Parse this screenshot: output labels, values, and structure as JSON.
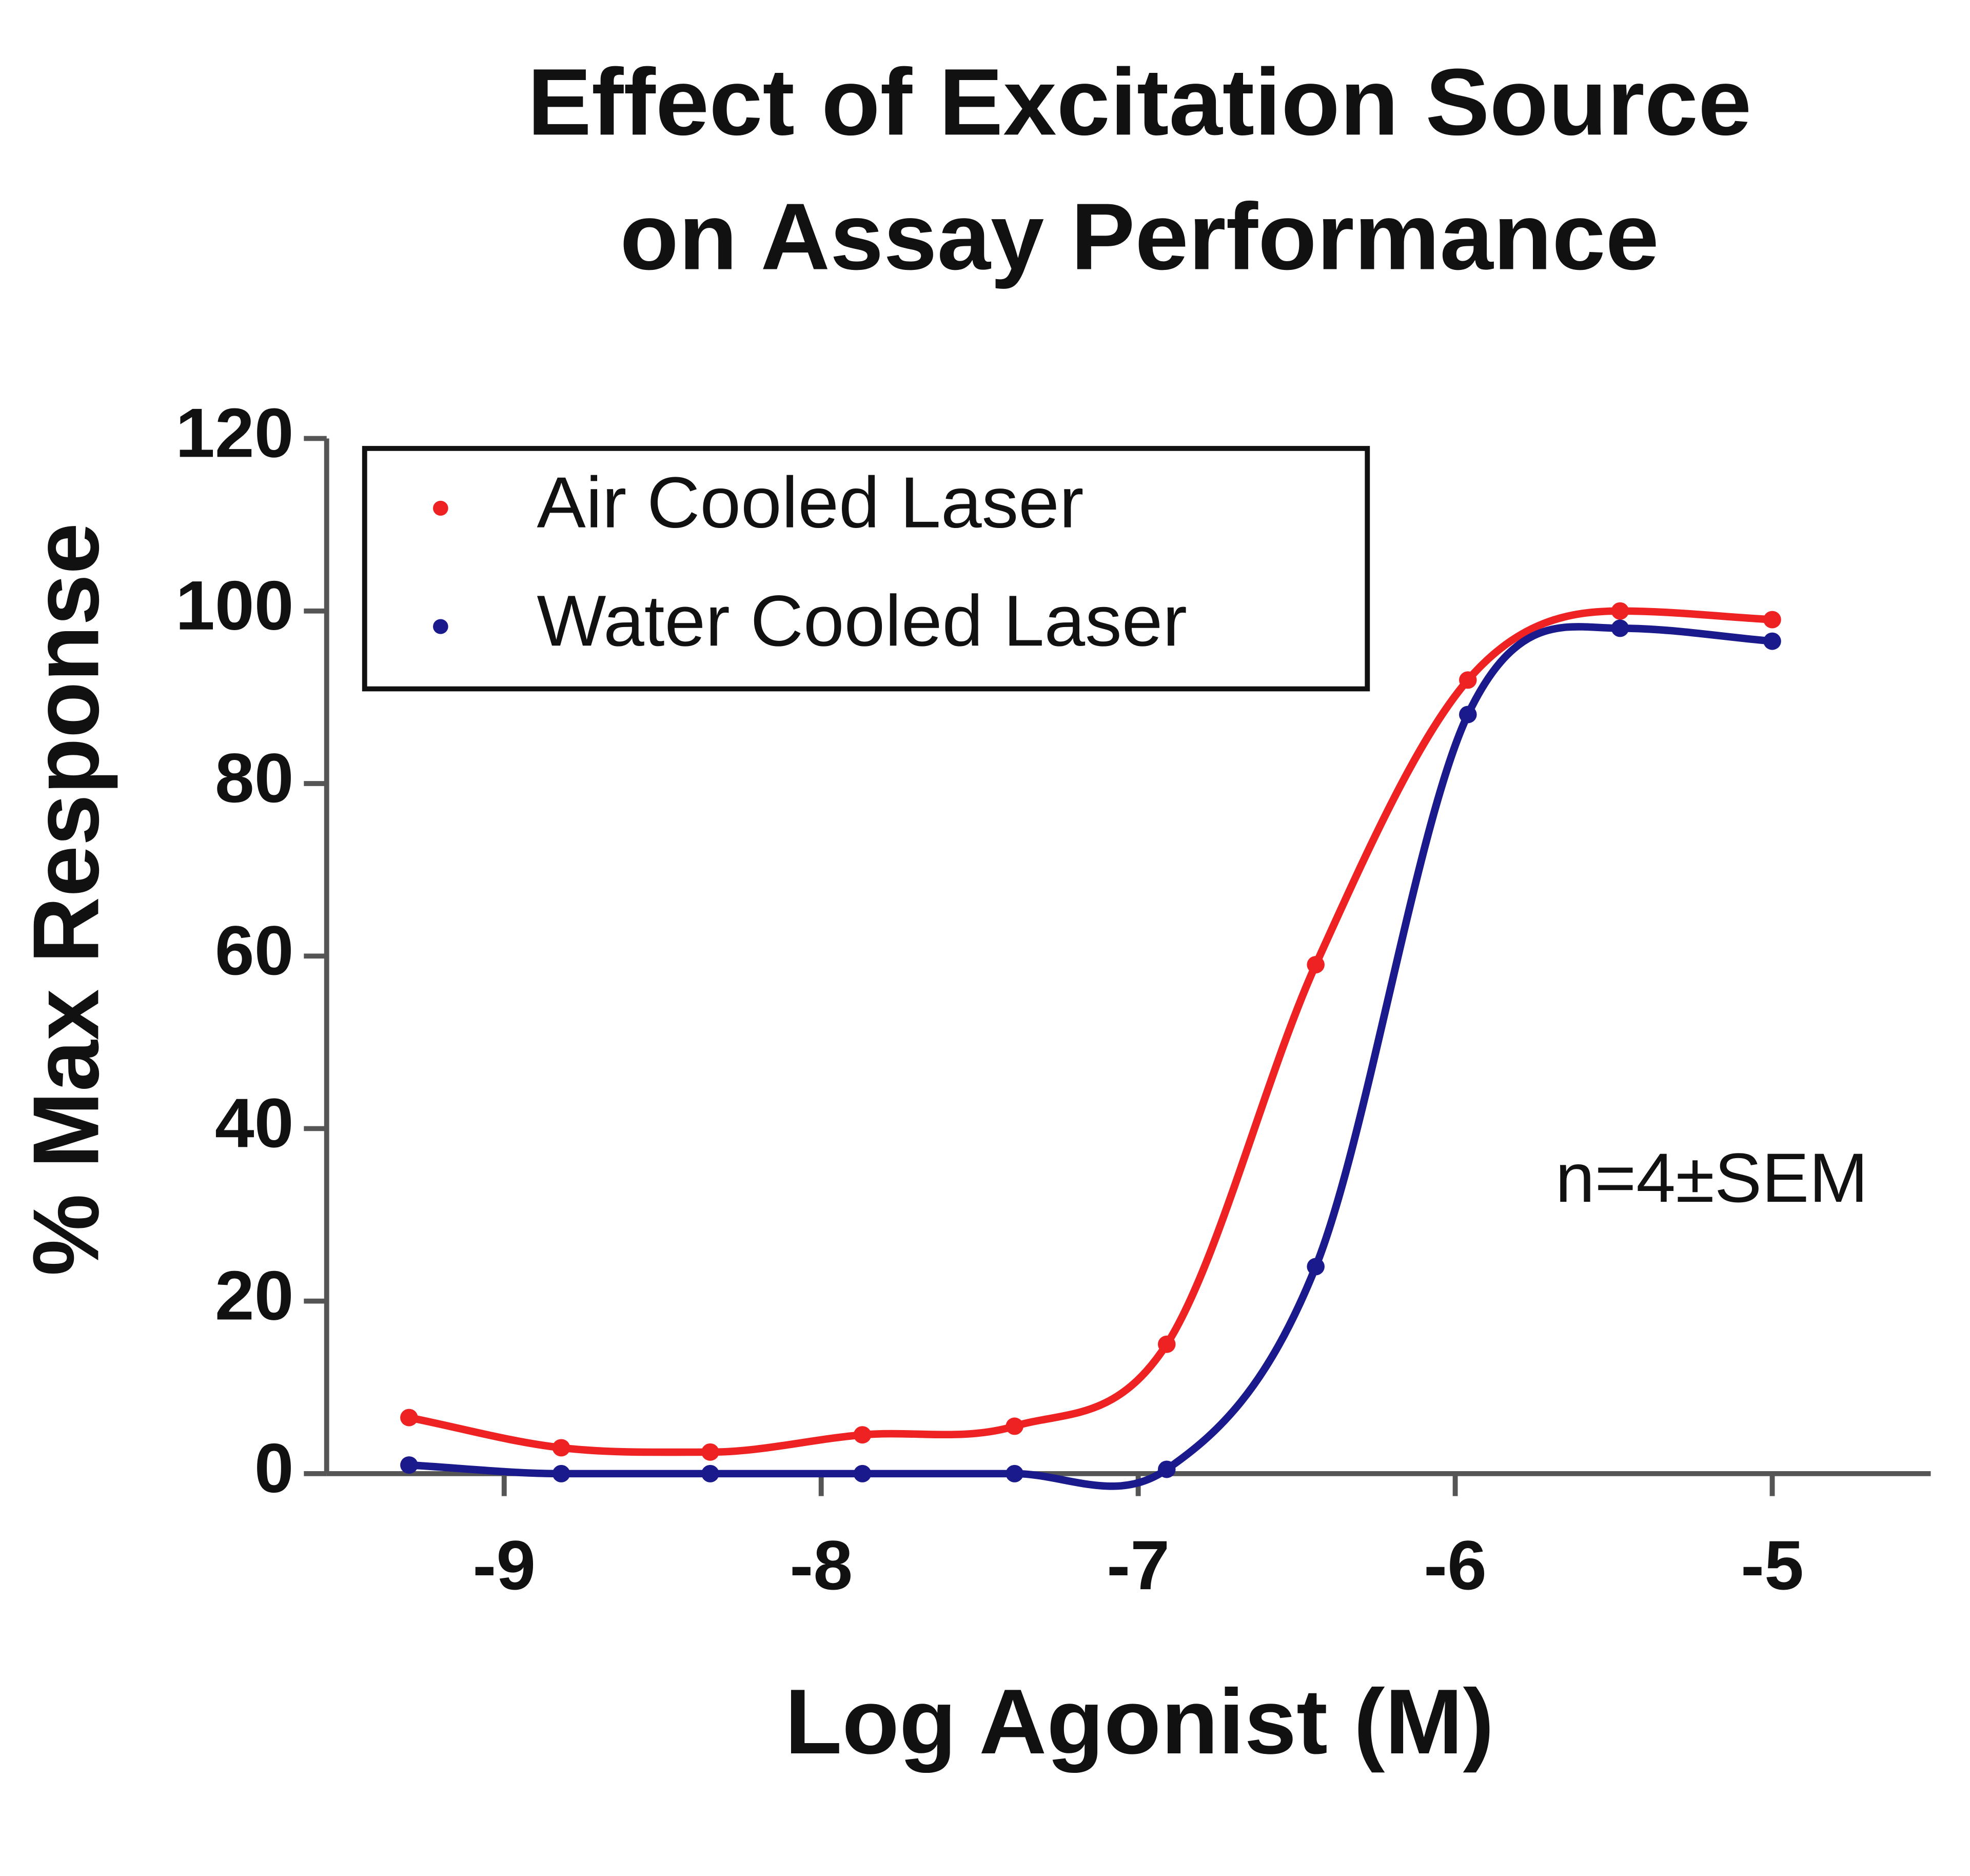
{
  "chart_data": {
    "type": "line",
    "title": [
      "Effect of Excitation Source",
      "on Assay Performance"
    ],
    "x_label": "Log Agonist (M)",
    "y_label": "% Max Response",
    "annotation": "n=4±SEM",
    "x": [
      -9.3,
      -8.82,
      -8.35,
      -7.87,
      -7.39,
      -6.91,
      -6.44,
      -5.96,
      -5.48,
      -5.0
    ],
    "series": [
      {
        "name": "Air Cooled Laser",
        "color": "#ee2222",
        "values": [
          6.5,
          3,
          2.5,
          4.5,
          5.5,
          15,
          59,
          92,
          100,
          99
        ]
      },
      {
        "name": "Water Cooled Laser",
        "color": "#1a1a8c",
        "values": [
          1,
          0,
          0,
          0,
          0,
          0.5,
          24,
          88,
          98,
          96.5
        ]
      }
    ],
    "xlim": [
      -9.56,
      -4.5
    ],
    "ylim": [
      0,
      120
    ],
    "xticks": [
      -9,
      -8,
      -7,
      -6,
      -5
    ],
    "yticks": [
      0,
      20,
      40,
      60,
      80,
      100,
      120
    ],
    "legend": "upper left"
  }
}
